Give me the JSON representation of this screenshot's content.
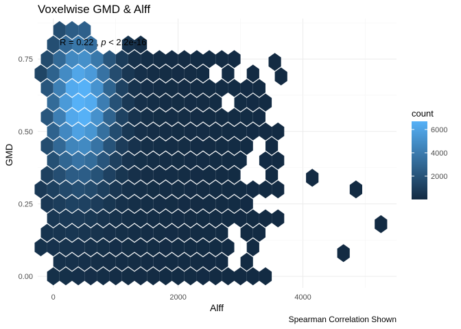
{
  "chart_data": {
    "type": "hexbin",
    "title": "Voxelwise GMD & Alff",
    "xlabel": "Alff",
    "ylabel": "GMD",
    "caption": "Spearman Correlation Shown",
    "annotation": {
      "prefix": "R = 0.22 , ",
      "p_symbol": "p",
      "suffix": " < 2.2e-16"
    },
    "xlim": [
      -250,
      5500
    ],
    "ylim": [
      -0.04,
      0.89
    ],
    "x_ticks": [
      {
        "value": 0,
        "label": "0"
      },
      {
        "value": 2000,
        "label": "2000"
      },
      {
        "value": 4000,
        "label": "4000"
      }
    ],
    "y_ticks": [
      {
        "value": 0,
        "label": "0.00"
      },
      {
        "value": 0.25,
        "label": "0.25"
      },
      {
        "value": 0.5,
        "label": "0.50"
      },
      {
        "value": 0.75,
        "label": "0.75"
      }
    ],
    "legend": {
      "title": "count",
      "ticks": [
        {
          "value": 2000,
          "label": "2000"
        },
        {
          "value": 4000,
          "label": "4000"
        },
        {
          "value": 6000,
          "label": "6000"
        }
      ],
      "range": [
        0,
        6700
      ],
      "color_low": "#132b43",
      "color_high": "#56b1f7",
      "placement": "right"
    },
    "grid": true,
    "bin_width": {
      "x": 200,
      "y": 0.05
    },
    "density_model": {
      "peak": {
        "x": 450,
        "y": 0.61,
        "count": 6700
      },
      "description": "Dense cluster along low Alff (200-900), counts decrease with increasing Alff; sparse outliers beyond 4000."
    },
    "outliers": [
      {
        "x": 4150,
        "y": 0.34
      },
      {
        "x": 4850,
        "y": 0.3
      },
      {
        "x": 5250,
        "y": 0.18
      },
      {
        "x": 4650,
        "y": 0.08
      },
      {
        "x": 3550,
        "y": 0.74
      },
      {
        "x": 3650,
        "y": 0.69
      }
    ]
  }
}
